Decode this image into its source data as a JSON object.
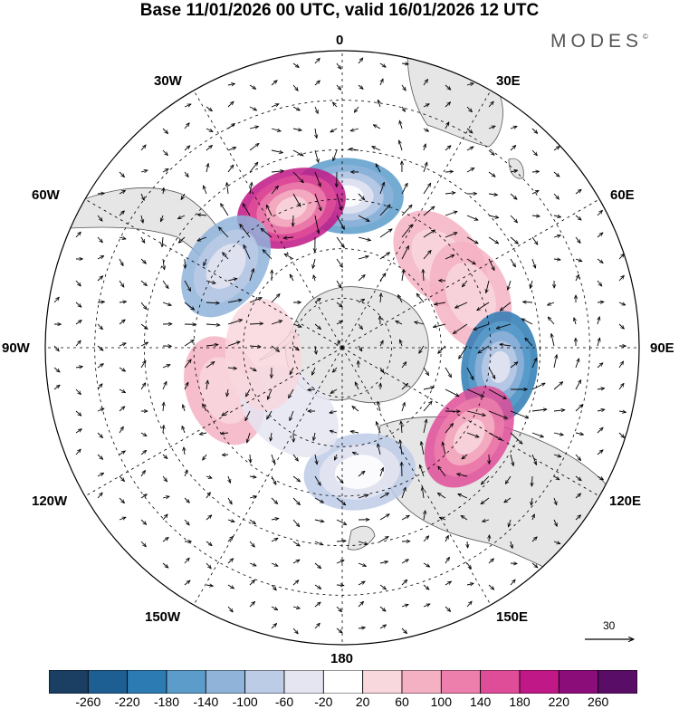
{
  "title": "Base 11/01/2026 00 UTC, valid 16/01/2026 12 UTC",
  "brand": "MODES",
  "brand_mark": "©",
  "longitude_labels": {
    "lon_0": "0",
    "lon_30e": "30E",
    "lon_60e": "60E",
    "lon_90e": "90E",
    "lon_120e": "120E",
    "lon_150e": "150E",
    "lon_180": "180",
    "lon_150w": "150W",
    "lon_120w": "120W",
    "lon_90w": "90W",
    "lon_60w": "60W",
    "lon_30w": "30W"
  },
  "reference_vector": "30",
  "colorbar": {
    "ticks": [
      "-260",
      "-220",
      "-180",
      "-140",
      "-100",
      "-60",
      "-20",
      "20",
      "60",
      "100",
      "140",
      "180",
      "220",
      "260"
    ],
    "colors": [
      "#1b3e63",
      "#1e5f93",
      "#2d7bb3",
      "#5b9ccb",
      "#8fb3d9",
      "#bccbe6",
      "#e5e5f1",
      "#ffffff",
      "#f8d7dd",
      "#f4b1c3",
      "#ec7fab",
      "#df4d98",
      "#c01886",
      "#8a0d7a",
      "#5a0d66"
    ]
  },
  "anomaly_centers": [
    {
      "name": "neg-atlantic-0",
      "lon": 2,
      "lat": -44,
      "value": -180
    },
    {
      "name": "pos-atlantic-20w",
      "lon": -20,
      "lat": -45,
      "value": 200
    },
    {
      "name": "neg-s-america",
      "lon": -55,
      "lat": -47,
      "value": -130
    },
    {
      "name": "pos-indian-45e",
      "lon": 48,
      "lat": -50,
      "value": 90
    },
    {
      "name": "pos-indian-65e",
      "lon": 68,
      "lat": -48,
      "value": 80
    },
    {
      "name": "neg-indian-95e",
      "lon": 97,
      "lat": -42,
      "value": -200
    },
    {
      "name": "pos-australia",
      "lon": 125,
      "lat": -43,
      "value": 170
    },
    {
      "name": "neg-pacific-170e",
      "lon": 172,
      "lat": -52,
      "value": -100
    },
    {
      "name": "pos-pacific-110w",
      "lon": -110,
      "lat": -52,
      "value": 70
    },
    {
      "name": "neg-pacific-140w",
      "lon": -140,
      "lat": -65,
      "value": -50
    },
    {
      "name": "pos-amundsen",
      "lon": -95,
      "lat": -66,
      "value": 50
    }
  ]
}
